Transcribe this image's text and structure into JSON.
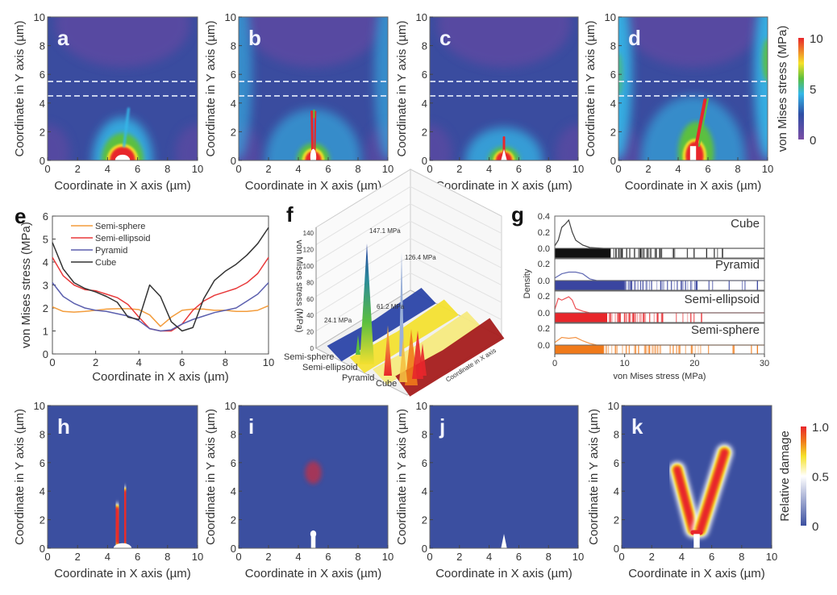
{
  "colorbars": {
    "stress": {
      "label": "von Mises stress (MPa)",
      "ticks": [
        "10",
        "5",
        "0"
      ],
      "colors": [
        "#7b4fa6",
        "#2f4fa5",
        "#35b8e8",
        "#5cbf3f",
        "#f5e22a",
        "#e8262b"
      ]
    },
    "damage": {
      "label": "Relative damage",
      "ticks": [
        "1.0",
        "0.5",
        "0"
      ],
      "colors": [
        "#3b4fa0",
        "#ffffff",
        "#f5e22a",
        "#f07a1a",
        "#e8262b"
      ]
    }
  },
  "chart_data": [
    {
      "type": "heatmap",
      "panel": "a",
      "shape": "Semi-sphere",
      "quantity": "von Mises stress",
      "xlabel": "Coordinate in X axis (µm)",
      "ylabel": "Coordinate in Y axis (µm)",
      "xlim": [
        0,
        10
      ],
      "ylim": [
        0,
        10
      ],
      "xticks": [
        "0",
        "2",
        "4",
        "6",
        "8",
        "10"
      ],
      "yticks": [
        "0",
        "2",
        "4",
        "6",
        "8",
        "10"
      ],
      "dashed_lines_y": [
        4.5,
        5.5
      ],
      "colorbar": "stress"
    },
    {
      "type": "heatmap",
      "panel": "b",
      "shape": "Semi-ellipsoid",
      "quantity": "von Mises stress",
      "xlabel": "Coordinate in X axis (µm)",
      "ylabel": "Coordinate in Y axis (µm)",
      "xlim": [
        0,
        10
      ],
      "ylim": [
        0,
        10
      ],
      "xticks": [
        "0",
        "2",
        "4",
        "6",
        "8",
        "10"
      ],
      "yticks": [
        "0",
        "2",
        "4",
        "6",
        "8",
        "10"
      ],
      "dashed_lines_y": [
        4.5,
        5.5
      ],
      "colorbar": "stress"
    },
    {
      "type": "heatmap",
      "panel": "c",
      "shape": "Pyramid",
      "quantity": "von Mises stress",
      "xlabel": "Coordinate in X axis (µm)",
      "ylabel": "Coordinate in Y axis (µm)",
      "xlim": [
        0,
        10
      ],
      "ylim": [
        0,
        10
      ],
      "xticks": [
        "0",
        "2",
        "4",
        "6",
        "8",
        "10"
      ],
      "yticks": [
        "0",
        "2",
        "4",
        "6",
        "8",
        "10"
      ],
      "dashed_lines_y": [
        4.5,
        5.5
      ],
      "colorbar": "stress"
    },
    {
      "type": "heatmap",
      "panel": "d",
      "shape": "Cube",
      "quantity": "von Mises stress",
      "xlabel": "Coordinate in X axis (µm)",
      "ylabel": "Coordinate in Y axis (µm)",
      "xlim": [
        0,
        10
      ],
      "ylim": [
        0,
        10
      ],
      "xticks": [
        "0",
        "2",
        "4",
        "6",
        "8",
        "10"
      ],
      "yticks": [
        "0",
        "2",
        "4",
        "6",
        "8",
        "10"
      ],
      "dashed_lines_y": [
        4.5,
        5.5
      ],
      "colorbar": "stress"
    },
    {
      "type": "line",
      "panel": "e",
      "xlabel": "Coordinate in X axis (µm)",
      "ylabel": "von Mises stress (MPa)",
      "xlim": [
        0,
        10
      ],
      "ylim": [
        0,
        6
      ],
      "xticks": [
        "0",
        "2",
        "4",
        "6",
        "8",
        "10"
      ],
      "yticks": [
        "0",
        "1",
        "2",
        "3",
        "4",
        "5",
        "6"
      ],
      "legend": "top-left",
      "x": [
        0,
        0.5,
        1,
        1.5,
        2,
        2.5,
        3,
        3.5,
        4,
        4.5,
        5,
        5.5,
        6,
        6.5,
        7,
        7.5,
        8,
        8.5,
        9,
        9.5,
        10
      ],
      "series": [
        {
          "name": "Semi-sphere",
          "color": "#f39c3c",
          "values": [
            2.05,
            1.85,
            1.82,
            1.85,
            1.9,
            1.95,
            1.97,
            1.97,
            1.93,
            1.7,
            1.2,
            1.6,
            1.9,
            1.95,
            1.95,
            1.9,
            1.9,
            1.85,
            1.85,
            1.9,
            2.1
          ]
        },
        {
          "name": "Semi-ellipsoid",
          "color": "#e8393a",
          "values": [
            4.2,
            3.4,
            3.0,
            2.8,
            2.75,
            2.6,
            2.45,
            2.15,
            1.6,
            1.1,
            1.0,
            1.0,
            1.3,
            1.9,
            2.3,
            2.55,
            2.7,
            2.85,
            3.1,
            3.5,
            4.2
          ]
        },
        {
          "name": "Pyramid",
          "color": "#5b5fae",
          "values": [
            3.1,
            2.5,
            2.2,
            2.0,
            1.9,
            1.85,
            1.75,
            1.65,
            1.45,
            1.1,
            1.0,
            1.05,
            1.3,
            1.5,
            1.65,
            1.8,
            1.9,
            2.0,
            2.3,
            2.6,
            3.1
          ]
        },
        {
          "name": "Cube",
          "color": "#333333",
          "values": [
            4.85,
            3.7,
            3.1,
            2.85,
            2.7,
            2.5,
            2.25,
            1.6,
            1.5,
            3.0,
            2.5,
            1.4,
            1.0,
            1.15,
            2.4,
            3.2,
            3.6,
            3.9,
            4.3,
            4.8,
            5.5
          ]
        }
      ]
    },
    {
      "type": "surface3d",
      "panel": "f",
      "zlabel": "von Mises stress (MPa)",
      "xlabel": "Coordinate in X axis",
      "zticks": [
        "0",
        "20",
        "40",
        "60",
        "80",
        "100",
        "120",
        "140"
      ],
      "categories": [
        "Semi-sphere",
        "Semi-ellipsoid",
        "Pyramid",
        "Cube"
      ],
      "category_colors": [
        "#2b45a8",
        "#f3e030",
        "#f5ea80",
        "#a51c1c"
      ],
      "peaks": [
        {
          "label": "147.1 MPa",
          "value": 147.1
        },
        {
          "label": "126.4 MPa",
          "value": 126.4
        },
        {
          "label": "61.2 MPa",
          "value": 61.2
        },
        {
          "label": "24.1 MPa",
          "value": 24.1
        }
      ]
    },
    {
      "type": "density",
      "panel": "g",
      "xlabel": "von Mises stress (MPa)",
      "ylabel": "Density",
      "xlim": [
        0,
        30
      ],
      "xticks": [
        "0",
        "10",
        "20",
        "30"
      ],
      "series": [
        {
          "name": "Cube",
          "color": "#111111",
          "ylim": [
            0,
            0.4
          ],
          "yticks": [
            "0.4",
            "0.2",
            "0.0"
          ],
          "curve": [
            [
              0,
              0.03
            ],
            [
              0.5,
              0.1
            ],
            [
              1,
              0.26
            ],
            [
              1.5,
              0.3
            ],
            [
              2,
              0.35
            ],
            [
              2.5,
              0.2
            ],
            [
              3,
              0.1
            ],
            [
              4,
              0.04
            ],
            [
              5,
              0.01
            ],
            [
              7,
              0
            ]
          ],
          "rug_dense_to": 8,
          "rug_max": 24
        },
        {
          "name": "Pyramid",
          "color": "#3a45a0",
          "ylim": [
            0,
            0.2
          ],
          "yticks": [
            "0.2",
            "0.0"
          ],
          "curve": [
            [
              0,
              0.03
            ],
            [
              1,
              0.08
            ],
            [
              2,
              0.1
            ],
            [
              3,
              0.1
            ],
            [
              4,
              0.08
            ],
            [
              5,
              0.02
            ],
            [
              6,
              0
            ]
          ],
          "rug_dense_to": 10,
          "rug_max": 29
        },
        {
          "name": "Semi-ellipsoid",
          "color": "#e8262b",
          "ylim": [
            0,
            0.2
          ],
          "yticks": [
            "0.2",
            "0.0"
          ],
          "curve": [
            [
              0,
              0.04
            ],
            [
              0.5,
              0.17
            ],
            [
              1,
              0.15
            ],
            [
              1.5,
              0.17
            ],
            [
              2,
              0.19
            ],
            [
              2.5,
              0.15
            ],
            [
              3,
              0.05
            ],
            [
              4,
              0.02
            ],
            [
              5,
              0
            ]
          ],
          "rug_dense_to": 7.5,
          "rug_max": 21
        },
        {
          "name": "Semi-sphere",
          "color": "#f07a1a",
          "ylim": [
            0,
            0.2
          ],
          "yticks": [
            "0.2",
            "0.0"
          ],
          "curve": [
            [
              0,
              0.03
            ],
            [
              1,
              0.09
            ],
            [
              2,
              0.08
            ],
            [
              3,
              0.09
            ],
            [
              4,
              0.05
            ],
            [
              5,
              0.02
            ],
            [
              6,
              0
            ]
          ],
          "rug_dense_to": 7,
          "rug_max": 29
        }
      ]
    },
    {
      "type": "heatmap",
      "panel": "h",
      "shape": "Semi-sphere",
      "quantity": "Relative damage",
      "xlabel": "Coordinate in X axis (µm)",
      "ylabel": "Coordinate in Y axis (µm)",
      "xlim": [
        0,
        10
      ],
      "ylim": [
        0,
        10
      ],
      "xticks": [
        "0",
        "2",
        "4",
        "6",
        "8",
        "10"
      ],
      "yticks": [
        "0",
        "2",
        "4",
        "6",
        "8",
        "10"
      ],
      "colorbar": "damage"
    },
    {
      "type": "heatmap",
      "panel": "i",
      "shape": "Semi-ellipsoid",
      "quantity": "Relative damage",
      "xlabel": "Coordinate in X axis (µm)",
      "ylabel": "Coordinate in Y axis (µm)",
      "xlim": [
        0,
        10
      ],
      "ylim": [
        0,
        10
      ],
      "xticks": [
        "0",
        "2",
        "4",
        "6",
        "8",
        "10"
      ],
      "yticks": [
        "0",
        "2",
        "4",
        "6",
        "8",
        "10"
      ],
      "colorbar": "damage"
    },
    {
      "type": "heatmap",
      "panel": "j",
      "shape": "Pyramid",
      "quantity": "Relative damage",
      "xlabel": "Coordinate in X axis (µm)",
      "ylabel": "Coordinate in Y axis (µm)",
      "xlim": [
        0,
        10
      ],
      "ylim": [
        0,
        10
      ],
      "xticks": [
        "0",
        "2",
        "4",
        "6",
        "8",
        "10"
      ],
      "yticks": [
        "0",
        "2",
        "4",
        "6",
        "8",
        "10"
      ],
      "colorbar": "damage"
    },
    {
      "type": "heatmap",
      "panel": "k",
      "shape": "Cube",
      "quantity": "Relative damage",
      "xlabel": "Coordinate in X axis (µm)",
      "ylabel": "Coordinate in Y axis (µm)",
      "xlim": [
        0,
        10
      ],
      "ylim": [
        0,
        10
      ],
      "xticks": [
        "0",
        "2",
        "4",
        "6",
        "8",
        "10"
      ],
      "yticks": [
        "0",
        "2",
        "4",
        "6",
        "8",
        "10"
      ],
      "colorbar": "damage"
    }
  ]
}
